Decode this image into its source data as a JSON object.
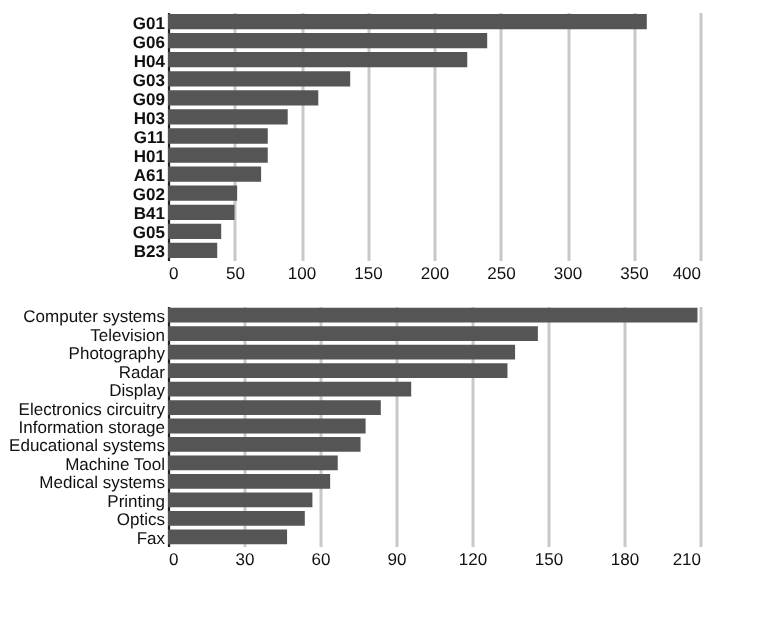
{
  "chart_data": [
    {
      "type": "bar",
      "orientation": "horizontal",
      "categories": [
        "G01",
        "G06",
        "H04",
        "G03",
        "G09",
        "H03",
        "G11",
        "H01",
        "A61",
        "G02",
        "B41",
        "G05",
        "B23"
      ],
      "values": [
        360,
        240,
        225,
        137,
        113,
        90,
        75,
        75,
        70,
        52,
        50,
        40,
        37
      ],
      "color": "#555555",
      "xlim": [
        0,
        400
      ],
      "xticks": [
        0,
        50,
        100,
        150,
        200,
        250,
        300,
        350,
        400
      ],
      "grid": "x"
    },
    {
      "type": "bar",
      "orientation": "horizontal",
      "categories": [
        "Computer systems",
        "Television",
        "Photography",
        "Radar",
        "Display",
        "Electronics circuitry",
        "Information storage",
        "Educational systems",
        "Machine Tool",
        "Medical systems",
        "Printing",
        "Optics",
        "Fax"
      ],
      "values": [
        209,
        146,
        137,
        134,
        96,
        84,
        78,
        76,
        67,
        64,
        57,
        54,
        47
      ],
      "color": "#555555",
      "xlim": [
        0,
        210
      ],
      "xticks": [
        0,
        30,
        60,
        90,
        120,
        150,
        180,
        210
      ],
      "grid": "x"
    }
  ]
}
